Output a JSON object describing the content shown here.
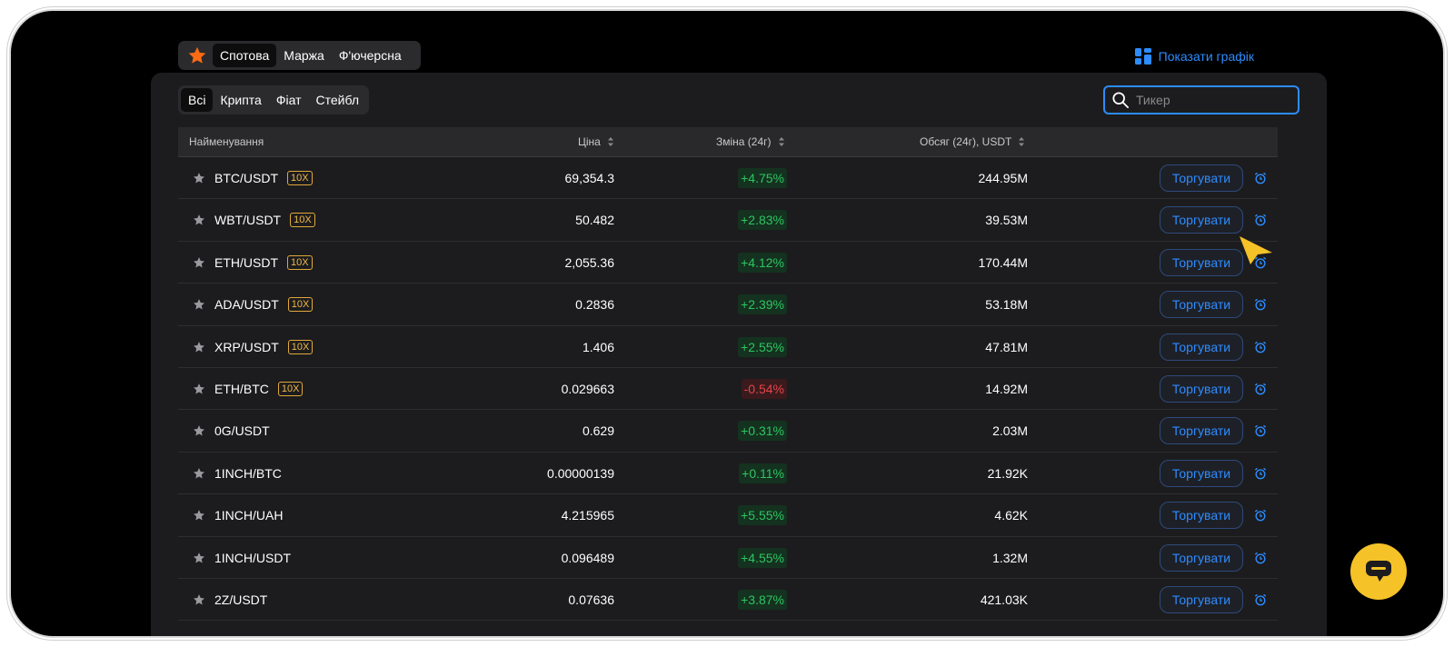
{
  "market_tabs": {
    "star_icon": "star-icon",
    "items": [
      "Спотова",
      "Маржа",
      "Ф'ючерсна"
    ],
    "active": 0
  },
  "show_chart": {
    "label": "Показати графік",
    "icon": "grid-icon"
  },
  "category_tabs": {
    "items": [
      "Всі",
      "Крипта",
      "Фіат",
      "Стейбл"
    ],
    "active": 0
  },
  "search": {
    "placeholder": "Тикер",
    "value": ""
  },
  "table": {
    "columns": [
      "Найменування",
      "Ціна",
      "Зміна (24г)",
      "Обсяг (24г), USDT"
    ],
    "trade_label": "Торгувати",
    "rows": [
      {
        "pair": "BTC/USDT",
        "leverage": "10X",
        "price": "69,354.3",
        "change": "+4.75%",
        "volume": "244.95M"
      },
      {
        "pair": "WBT/USDT",
        "leverage": "10X",
        "price": "50.482",
        "change": "+2.83%",
        "volume": "39.53M"
      },
      {
        "pair": "ETH/USDT",
        "leverage": "10X",
        "price": "2,055.36",
        "change": "+4.12%",
        "volume": "170.44M"
      },
      {
        "pair": "ADA/USDT",
        "leverage": "10X",
        "price": "0.2836",
        "change": "+2.39%",
        "volume": "53.18M"
      },
      {
        "pair": "XRP/USDT",
        "leverage": "10X",
        "price": "1.406",
        "change": "+2.55%",
        "volume": "47.81M"
      },
      {
        "pair": "ETH/BTC",
        "leverage": "10X",
        "price": "0.029663",
        "change": "-0.54%",
        "volume": "14.92M"
      },
      {
        "pair": "0G/USDT",
        "leverage": "",
        "price": "0.629",
        "change": "+0.31%",
        "volume": "2.03M"
      },
      {
        "pair": "1INCH/BTC",
        "leverage": "",
        "price": "0.00000139",
        "change": "+0.11%",
        "volume": "21.92K"
      },
      {
        "pair": "1INCH/UAH",
        "leverage": "",
        "price": "4.215965",
        "change": "+5.55%",
        "volume": "4.62K"
      },
      {
        "pair": "1INCH/USDT",
        "leverage": "",
        "price": "0.096489",
        "change": "+4.55%",
        "volume": "1.32M"
      },
      {
        "pair": "2Z/USDT",
        "leverage": "",
        "price": "0.07636",
        "change": "+3.87%",
        "volume": "421.03K"
      }
    ]
  },
  "colors": {
    "accent": "#2d8cff",
    "up": "#2ec462",
    "down": "#e2444c",
    "leverage": "#f0b84a",
    "chat": "#f5c228"
  }
}
